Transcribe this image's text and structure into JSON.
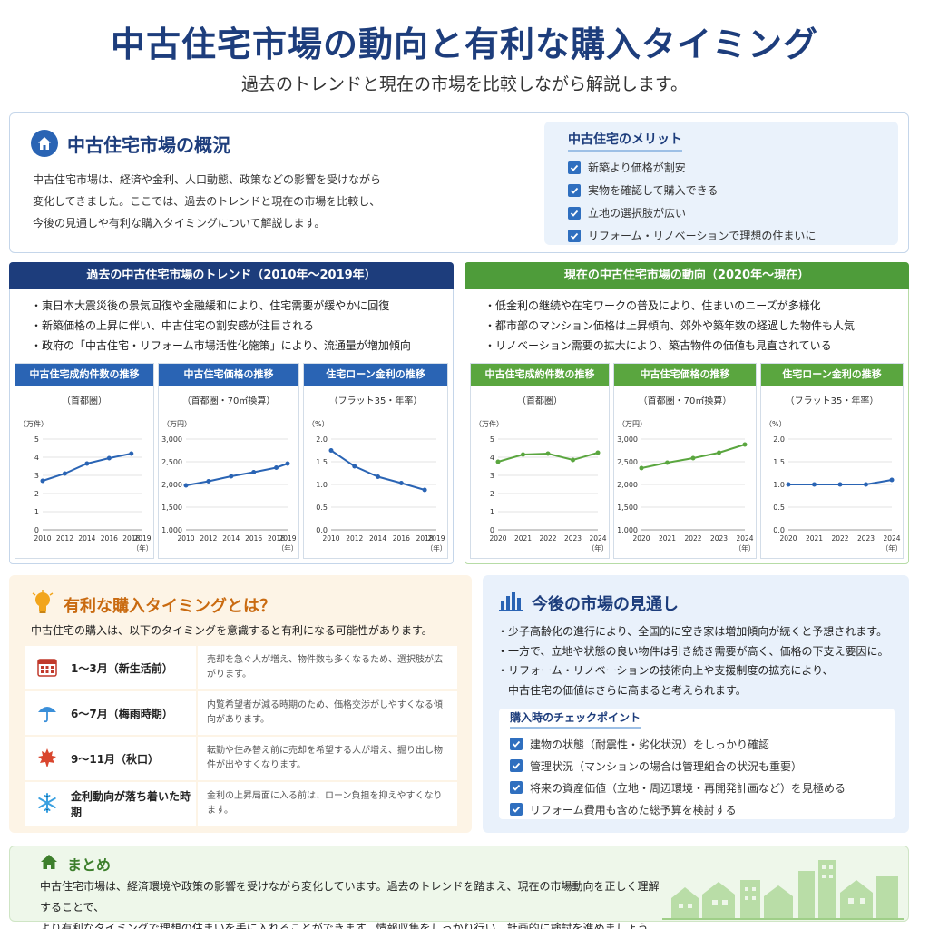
{
  "header": {
    "title": "中古住宅市場の動向と有利な購入タイミング",
    "subtitle": "過去のトレンドと現在の市場を比較しながら解説します。"
  },
  "overview": {
    "title": "中古住宅市場の概況",
    "lines": [
      "中古住宅市場は、経済や金利、人口動態、政策などの影響を受けながら",
      "変化してきました。ここでは、過去のトレンドと現在の市場を比較し、",
      "今後の見通しや有利な購入タイミングについて解説します。"
    ]
  },
  "merits": {
    "title": "中古住宅のメリット",
    "items": [
      "新築より価格が割安",
      "実物を確認して購入できる",
      "立地の選択肢が広い",
      "リフォーム・リノベーションで理想の住まいに"
    ]
  },
  "past": {
    "title": "過去の中古住宅市場のトレンド（2010年〜2019年）",
    "bullets": [
      "・東日本大震災後の景気回復や金融緩和により、住宅需要が緩やかに回復",
      "・新築価格の上昇に伴い、中古住宅の割安感が注目される",
      "・政府の「中古住宅・リフォーム市場活性化施策」により、流通量が増加傾向"
    ]
  },
  "present": {
    "title": "現在の中古住宅市場の動向（2020年〜現在）",
    "bullets": [
      "・低金利の継続や在宅ワークの普及により、住まいのニーズが多様化",
      "・都市部のマンション価格は上昇傾向、郊外や築年数の経過した物件も人気",
      "・リノベーション需要の拡大により、築古物件の価値も見直されている"
    ]
  },
  "colors": {
    "blue": "#2a64b4",
    "green": "#5aa63f",
    "navy": "#1d3d7c",
    "orange": "#c96a10"
  },
  "chart_data": [
    {
      "type": "line",
      "title": "中古住宅成約件数の推移",
      "subtitle": "（首都圏）",
      "unit": "（万件）",
      "x": [
        2010,
        2012,
        2014,
        2016,
        2018
      ],
      "x_ticks": [
        "2010",
        "2012",
        "2014",
        "2016",
        "2018",
        "2019"
      ],
      "x_unit": "（年）",
      "y_ticks": [
        "0",
        "1",
        "2",
        "3",
        "4",
        "5"
      ],
      "ylim": [
        0,
        5
      ],
      "series": [
        {
          "values": [
            2.7,
            3.1,
            3.65,
            3.95,
            4.2
          ]
        }
      ]
    },
    {
      "type": "line",
      "title": "中古住宅価格の推移",
      "subtitle": "（首都圏・70㎡換算）",
      "unit": "（万円）",
      "x": [
        2010,
        2012,
        2014,
        2016,
        2018,
        2019
      ],
      "x_ticks": [
        "2010",
        "2012",
        "2014",
        "2016",
        "2018",
        "2019"
      ],
      "x_unit": "（年）",
      "y_ticks": [
        "1,000",
        "1,500",
        "2,000",
        "2,500",
        "3,000"
      ],
      "ylim": [
        1000,
        3000
      ],
      "series": [
        {
          "values": [
            1980,
            2070,
            2180,
            2270,
            2370,
            2460
          ]
        }
      ]
    },
    {
      "type": "line",
      "title": "住宅ローン金利の推移",
      "subtitle": "（フラット35・年率）",
      "unit": "（%）",
      "x": [
        2010,
        2012,
        2014,
        2016,
        2018
      ],
      "x_ticks": [
        "2010",
        "2012",
        "2014",
        "2016",
        "2018",
        "2019"
      ],
      "x_unit": "（年）",
      "y_ticks": [
        "0.0",
        "0.5",
        "1.0",
        "1.5",
        "2.0"
      ],
      "ylim": [
        0,
        2
      ],
      "series": [
        {
          "values": [
            1.75,
            1.4,
            1.17,
            1.03,
            0.88
          ]
        }
      ]
    },
    {
      "type": "line",
      "title": "中古住宅成約件数の推移",
      "subtitle": "（首都圏）",
      "unit": "（万件）",
      "x": [
        2020,
        2021,
        2022,
        2023,
        2024
      ],
      "x_ticks": [
        "2020",
        "2021",
        "2022",
        "2023",
        "2024"
      ],
      "x_unit": "（年）",
      "y_ticks": [
        "0",
        "1",
        "2",
        "3",
        "4",
        "5"
      ],
      "ylim": [
        0,
        5
      ],
      "series": [
        {
          "values": [
            3.75,
            4.15,
            4.2,
            3.85,
            4.25
          ]
        }
      ]
    },
    {
      "type": "line",
      "title": "中古住宅価格の推移",
      "subtitle": "（首都圏・70㎡換算）",
      "unit": "（万円）",
      "x": [
        2020,
        2021,
        2022,
        2023,
        2024
      ],
      "x_ticks": [
        "2020",
        "2021",
        "2022",
        "2023",
        "2024"
      ],
      "x_unit": "（年）",
      "y_ticks": [
        "1,000",
        "1,500",
        "2,000",
        "2,500",
        "3,000"
      ],
      "ylim": [
        1000,
        3000
      ],
      "series": [
        {
          "values": [
            2360,
            2480,
            2580,
            2700,
            2880
          ]
        }
      ]
    },
    {
      "type": "line",
      "title": "住宅ローン金利の推移",
      "subtitle": "（フラット35・年率）",
      "unit": "（%）",
      "x": [
        2020,
        2021,
        2022,
        2023,
        2024
      ],
      "x_ticks": [
        "2020",
        "2021",
        "2022",
        "2023",
        "2024"
      ],
      "x_unit": "（年）",
      "y_ticks": [
        "0.0",
        "0.5",
        "1.0",
        "1.5",
        "2.0"
      ],
      "ylim": [
        0,
        2
      ],
      "series": [
        {
          "values": [
            1.0,
            1.0,
            1.0,
            1.0,
            1.1
          ]
        }
      ]
    }
  ],
  "timing": {
    "title": "有利な購入タイミングとは？",
    "intro": "中古住宅の購入は、以下のタイミングを意識すると有利になる可能性があります。",
    "rows": [
      {
        "icon": "calendar-icon",
        "label": "1〜3月（新生活前）",
        "desc": "売却を急ぐ人が増え、物件数も多くなるため、選択肢が広がります。"
      },
      {
        "icon": "umbrella-icon",
        "label": "6〜7月（梅雨時期）",
        "desc": "内覧希望者が減る時期のため、価格交渉がしやすくなる傾向があります。"
      },
      {
        "icon": "maple-leaf-icon",
        "label": "9〜11月（秋口）",
        "desc": "転勤や住み替え前に売却を希望する人が増え、掘り出し物件が出やすくなります。"
      },
      {
        "icon": "snowflake-icon",
        "label": "金利動向が落ち着いた時期",
        "desc": "金利の上昇局面に入る前は、ローン負担を抑えやすくなります。"
      }
    ]
  },
  "outlook": {
    "title": "今後の市場の見通し",
    "bullets": [
      "・少子高齢化の進行により、全国的に空き家は増加傾向が続くと予想されます。",
      "・一方で、立地や状態の良い物件は引き続き需要が高く、価格の下支え要因に。",
      "・リフォーム・リノベーションの技術向上や支援制度の拡充により、",
      "　中古住宅の価値はさらに高まると考えられます。"
    ],
    "checkpoints_title": "購入時のチェックポイント",
    "checkpoints": [
      "建物の状態（耐震性・劣化状況）をしっかり確認",
      "管理状況（マンションの場合は管理組合の状況も重要）",
      "将来の資産価値（立地・周辺環境・再開発計画など）を見極める",
      "リフォーム費用も含めた総予算を検討する"
    ]
  },
  "summary": {
    "title": "まとめ",
    "lines": [
      "中古住宅市場は、経済環境や政策の影響を受けながら変化しています。過去のトレンドを踏まえ、現在の市場動向を正しく理解することで、",
      "より有利なタイミングで理想の住まいを手に入れることができます。情報収集をしっかり行い、計画的に検討を進めましょう。"
    ]
  }
}
